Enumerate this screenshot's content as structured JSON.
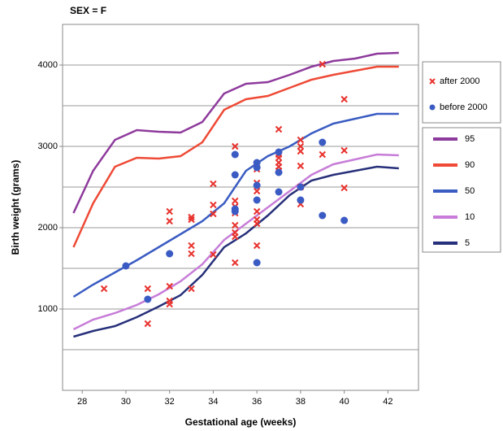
{
  "chart_data": {
    "type": "line",
    "title": "SEX = F",
    "x_label": "Gestational age (weeks)",
    "y_label": "Birth weight (grams)",
    "xlim": [
      27.1,
      43.4
    ],
    "ylim": [
      0,
      4500
    ],
    "xticks": [
      28,
      30,
      32,
      34,
      36,
      38,
      40,
      42
    ],
    "yticks": [
      1000,
      2000,
      3000,
      4000
    ],
    "grid": "major-minor",
    "series": [
      {
        "name": "after 2000",
        "color": "#e8332e",
        "mode": "markers",
        "marker": "x",
        "x": [
          29,
          31,
          31,
          32,
          32,
          32,
          32,
          32,
          33,
          33,
          33,
          33,
          33,
          34,
          34,
          34,
          34,
          35,
          35,
          35,
          35,
          35,
          35,
          35,
          35,
          36,
          36,
          36,
          36,
          36,
          36,
          36,
          36,
          37,
          37,
          37,
          37,
          37,
          37,
          38,
          38,
          38,
          38,
          38,
          38,
          39,
          39,
          40,
          40,
          40
        ],
        "values": [
          1250,
          1250,
          820,
          2200,
          2080,
          1280,
          1100,
          1060,
          2130,
          2100,
          1780,
          1680,
          1250,
          2540,
          2280,
          2170,
          1670,
          3000,
          2330,
          2260,
          2180,
          2030,
          1940,
          1890,
          1570,
          2790,
          2720,
          2550,
          2450,
          2200,
          2100,
          2050,
          1780,
          3210,
          2900,
          2860,
          2800,
          2750,
          2700,
          3080,
          3000,
          2940,
          2760,
          2500,
          2290,
          4010,
          2900,
          3580,
          2950,
          2490
        ]
      },
      {
        "name": "before 2000",
        "color": "#3b5bc4",
        "mode": "markers",
        "marker": "circle",
        "x": [
          30,
          31,
          32,
          35,
          35,
          35,
          35,
          36,
          36,
          36,
          36,
          36,
          37,
          37,
          37,
          38,
          38,
          39,
          39,
          40
        ],
        "values": [
          1530,
          1120,
          1680,
          2900,
          2650,
          2230,
          2200,
          2800,
          2740,
          2520,
          2340,
          1570,
          2930,
          2680,
          2440,
          2500,
          2340,
          3050,
          2150,
          2090
        ]
      },
      {
        "name": "95",
        "color": "#8e3a9c",
        "mode": "lines",
        "x": [
          27.6,
          28.5,
          29.5,
          30.5,
          31.5,
          32.5,
          33.5,
          34.5,
          35.5,
          36.5,
          37.5,
          38.5,
          39.5,
          40.5,
          41.5,
          42.5
        ],
        "values": [
          2180,
          2700,
          3080,
          3200,
          3180,
          3170,
          3300,
          3650,
          3770,
          3790,
          3880,
          3980,
          4050,
          4080,
          4140,
          4150
        ]
      },
      {
        "name": "90",
        "color": "#ee4a36",
        "mode": "lines",
        "x": [
          27.6,
          28.5,
          29.5,
          30.5,
          31.5,
          32.5,
          33.5,
          34.5,
          35.5,
          36.5,
          37.5,
          38.5,
          39.5,
          40.5,
          41.5,
          42.5
        ],
        "values": [
          1760,
          2300,
          2750,
          2860,
          2850,
          2880,
          3050,
          3450,
          3580,
          3620,
          3720,
          3820,
          3880,
          3930,
          3980,
          3980
        ]
      },
      {
        "name": "50",
        "color": "#3a5cc2",
        "mode": "lines",
        "x": [
          27.6,
          28.5,
          29.5,
          30.5,
          31.5,
          32.5,
          33.5,
          34.5,
          35.5,
          36.5,
          37.5,
          38.5,
          39.5,
          40.5,
          41.5,
          42.5
        ],
        "values": [
          1150,
          1300,
          1450,
          1600,
          1760,
          1920,
          2080,
          2300,
          2700,
          2880,
          3000,
          3160,
          3280,
          3340,
          3400,
          3400
        ]
      },
      {
        "name": "10",
        "color": "#c77dd8",
        "mode": "lines",
        "x": [
          27.6,
          28.5,
          29.5,
          30.5,
          31.5,
          32.5,
          33.5,
          34.5,
          35.5,
          36.5,
          37.5,
          38.5,
          39.5,
          40.5,
          41.5,
          42.5
        ],
        "values": [
          750,
          870,
          950,
          1050,
          1180,
          1340,
          1550,
          1850,
          2050,
          2250,
          2450,
          2650,
          2780,
          2840,
          2900,
          2890
        ]
      },
      {
        "name": "5",
        "color": "#27307a",
        "mode": "lines",
        "x": [
          27.6,
          28.5,
          29.5,
          30.5,
          31.5,
          32.5,
          33.5,
          34.5,
          35.5,
          36.5,
          37.5,
          38.5,
          39.5,
          40.5,
          41.5,
          42.5
        ],
        "values": [
          660,
          730,
          790,
          900,
          1030,
          1170,
          1420,
          1760,
          1930,
          2150,
          2400,
          2580,
          2650,
          2700,
          2750,
          2730
        ]
      }
    ]
  }
}
